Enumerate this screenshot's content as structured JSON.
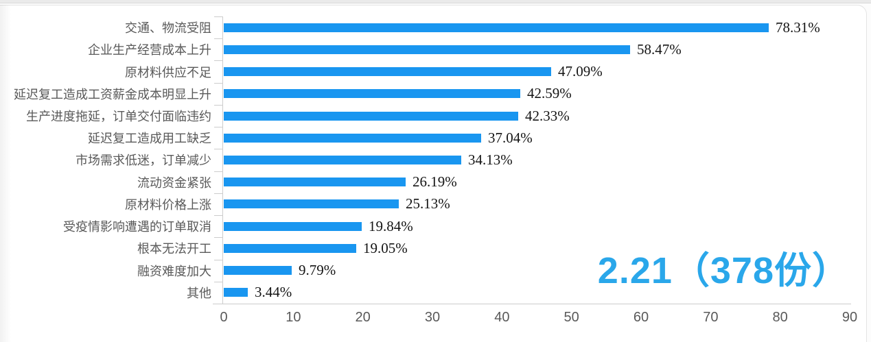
{
  "chart_data": {
    "type": "bar",
    "orientation": "horizontal",
    "title": "",
    "xlabel": "",
    "ylabel": "",
    "categories": [
      "交通、物流受阻",
      "企业生产经营成本上升",
      "原材料供应不足",
      "延迟复工造成工资薪金成本明显上升",
      "生产进度拖延，订单交付面临违约",
      "延迟复工造成用工缺乏",
      "市场需求低迷，订单减少",
      "流动资金紧张",
      "原材料价格上涨",
      "受疫情影响遭遇的订单取消",
      "根本无法开工",
      "融资难度加大",
      "其他"
    ],
    "values": [
      78.31,
      58.47,
      47.09,
      42.59,
      42.33,
      37.04,
      34.13,
      26.19,
      25.13,
      19.84,
      19.05,
      9.79,
      3.44
    ],
    "value_labels": [
      "78.31%",
      "58.47%",
      "47.09%",
      "42.59%",
      "42.33%",
      "37.04%",
      "34.13%",
      "26.19%",
      "25.13%",
      "19.84%",
      "19.05%",
      "9.79%",
      "3.44%"
    ],
    "x_ticks": [
      "0",
      "10",
      "20",
      "30",
      "40",
      "50",
      "60",
      "70",
      "80",
      "90"
    ],
    "xlim": [
      0,
      90
    ],
    "grid": false,
    "legend": "none",
    "bar_color": "#1996F0",
    "axis_color": "#cccccc",
    "category_label_color": "#595959",
    "value_label_color": "#141414",
    "annotation": {
      "text": "2.21（378份）",
      "color": "#2AA7EA"
    }
  }
}
